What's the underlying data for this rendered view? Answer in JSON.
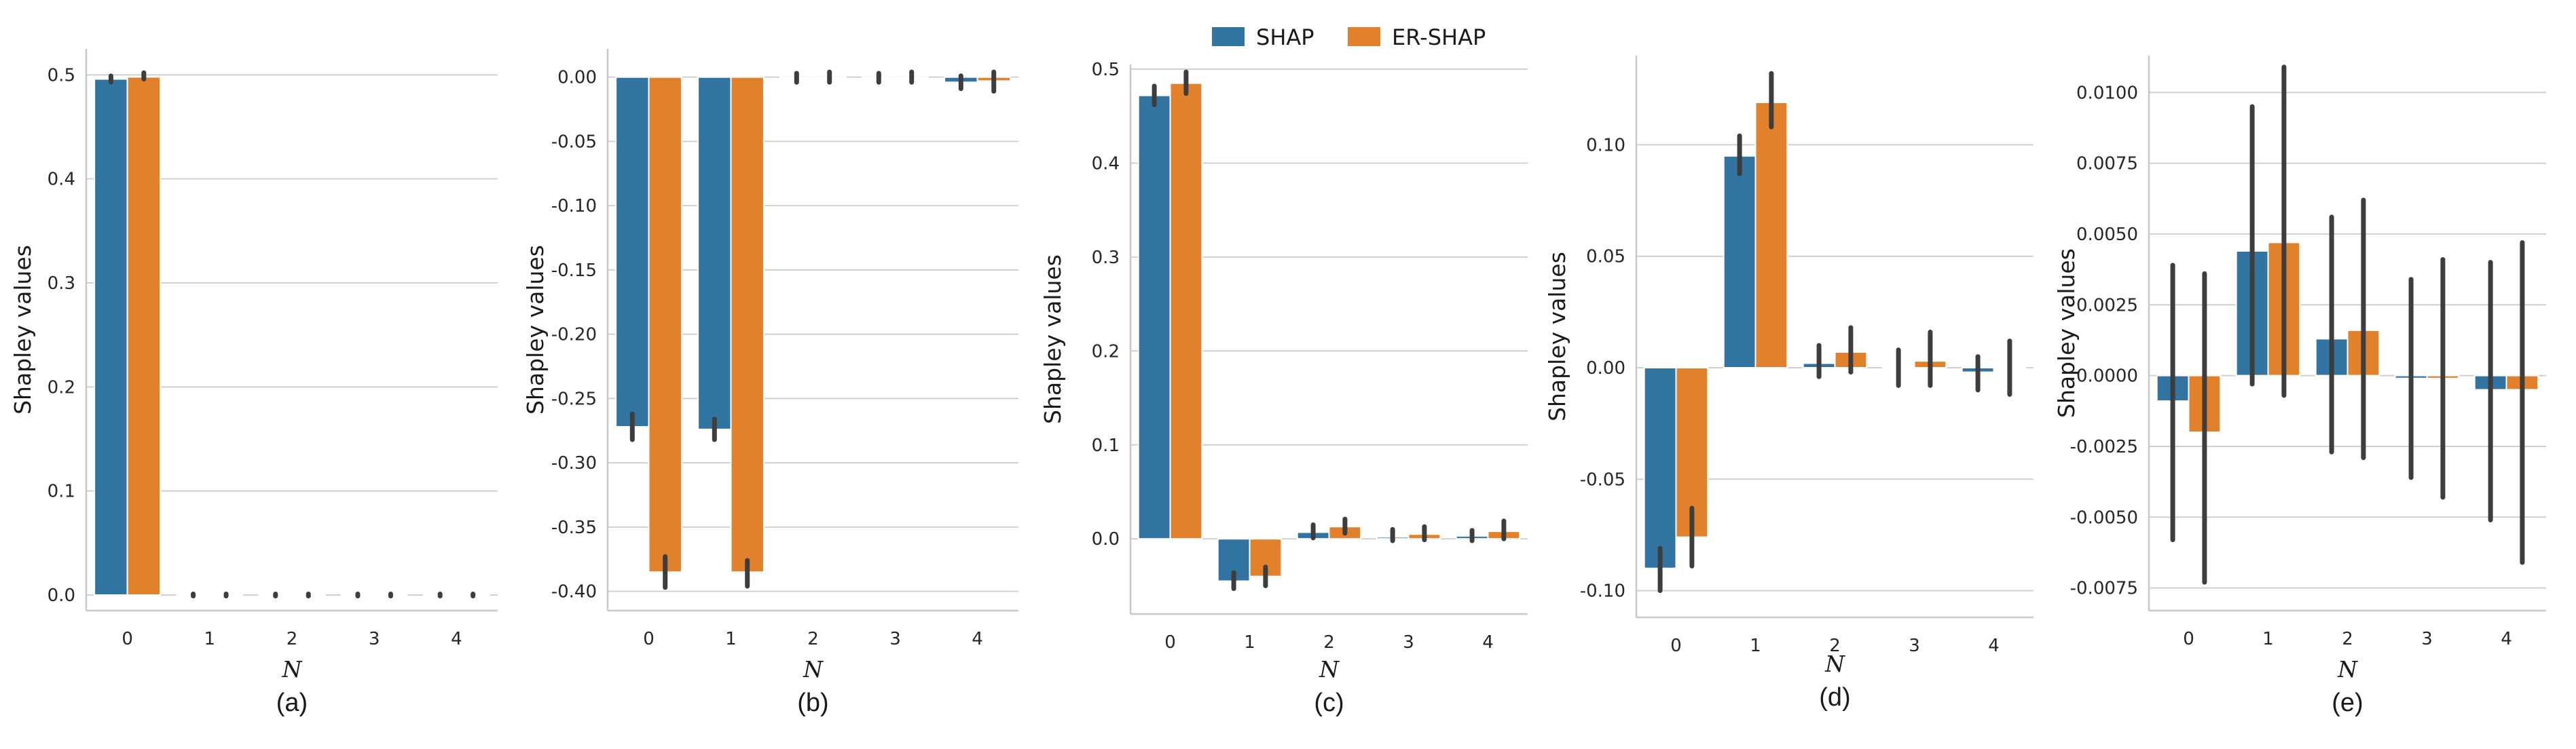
{
  "legend": [
    {
      "label": "SHAP",
      "color": "#3274a1"
    },
    {
      "label": "ER-SHAP",
      "color": "#e1812c"
    }
  ],
  "chart_data": [
    {
      "type": "bar",
      "caption": "(a)",
      "xlabel": "N",
      "ylabel": "Shapley values",
      "categories": [
        "0",
        "1",
        "2",
        "3",
        "4"
      ],
      "ylim": [
        -0.015,
        0.525
      ],
      "yticks": [
        0.0,
        0.1,
        0.2,
        0.3,
        0.4,
        0.5
      ],
      "ytick_labels": [
        "0.0",
        "0.1",
        "0.2",
        "0.3",
        "0.4",
        "0.5"
      ],
      "series": [
        {
          "name": "SHAP",
          "values": [
            0.496,
            0.0,
            0.0,
            0.0,
            0.0
          ],
          "err_low": [
            0.493,
            -0.001,
            -0.001,
            -0.001,
            -0.001
          ],
          "err_high": [
            0.499,
            0.001,
            0.001,
            0.001,
            0.001
          ]
        },
        {
          "name": "ER-SHAP",
          "values": [
            0.498,
            0.0,
            0.0,
            0.0,
            0.0
          ],
          "err_low": [
            0.496,
            -0.001,
            -0.001,
            -0.001,
            -0.001
          ],
          "err_high": [
            0.502,
            0.001,
            0.001,
            0.001,
            0.001
          ]
        }
      ]
    },
    {
      "type": "bar",
      "caption": "(b)",
      "xlabel": "N",
      "ylabel": "Shapley values",
      "categories": [
        "0",
        "1",
        "2",
        "3",
        "4"
      ],
      "ylim": [
        -0.415,
        0.022
      ],
      "yticks": [
        0.0,
        -0.05,
        -0.1,
        -0.15,
        -0.2,
        -0.25,
        -0.3,
        -0.35,
        -0.4
      ],
      "ytick_labels": [
        "0.00",
        "-0.05",
        "-0.10",
        "-0.15",
        "-0.20",
        "-0.25",
        "-0.30",
        "-0.35",
        "-0.40"
      ],
      "series": [
        {
          "name": "SHAP",
          "values": [
            -0.272,
            -0.274,
            0.0,
            0.0,
            -0.004
          ],
          "err_low": [
            -0.282,
            -0.282,
            -0.004,
            -0.004,
            -0.009
          ],
          "err_high": [
            -0.262,
            -0.266,
            0.003,
            0.003,
            0.001
          ]
        },
        {
          "name": "ER-SHAP",
          "values": [
            -0.385,
            -0.385,
            0.0,
            0.0,
            -0.003
          ],
          "err_low": [
            -0.397,
            -0.396,
            -0.004,
            -0.004,
            -0.011
          ],
          "err_high": [
            -0.373,
            -0.376,
            0.004,
            0.004,
            0.004
          ]
        }
      ]
    },
    {
      "type": "bar",
      "caption": "(c)",
      "xlabel": "N",
      "ylabel": "Shapley values",
      "categories": [
        "0",
        "1",
        "2",
        "3",
        "4"
      ],
      "ylim": [
        -0.08,
        0.505
      ],
      "yticks": [
        0.0,
        0.1,
        0.2,
        0.3,
        0.4,
        0.5
      ],
      "ytick_labels": [
        "0.0",
        "0.1",
        "0.2",
        "0.3",
        "0.4",
        "0.5"
      ],
      "series": [
        {
          "name": "SHAP",
          "values": [
            0.472,
            -0.045,
            0.007,
            0.002,
            0.003
          ],
          "err_low": [
            0.462,
            -0.053,
            0.001,
            -0.002,
            -0.002
          ],
          "err_high": [
            0.482,
            -0.036,
            0.015,
            0.01,
            0.009
          ]
        },
        {
          "name": "ER-SHAP",
          "values": [
            0.485,
            -0.04,
            0.013,
            0.005,
            0.008
          ],
          "err_low": [
            0.474,
            -0.05,
            0.006,
            -0.001,
            0.0
          ],
          "err_high": [
            0.497,
            -0.03,
            0.021,
            0.013,
            0.019
          ]
        }
      ]
    },
    {
      "type": "bar",
      "caption": "(d)",
      "xlabel": "N",
      "ylabel": "Shapley values",
      "categories": [
        "0",
        "1",
        "2",
        "3",
        "4"
      ],
      "ylim": [
        -0.112,
        0.14
      ],
      "yticks": [
        -0.1,
        -0.05,
        0.0,
        0.05,
        0.1
      ],
      "ytick_labels": [
        "-0.10",
        "-0.05",
        "0.00",
        "0.05",
        "0.10"
      ],
      "series": [
        {
          "name": "SHAP",
          "values": [
            -0.09,
            0.095,
            0.002,
            0.0,
            -0.002
          ],
          "err_low": [
            -0.1,
            0.087,
            -0.004,
            -0.008,
            -0.01
          ],
          "err_high": [
            -0.081,
            0.104,
            0.01,
            0.008,
            0.005
          ]
        },
        {
          "name": "ER-SHAP",
          "values": [
            -0.076,
            0.119,
            0.007,
            0.003,
            0.0
          ],
          "err_low": [
            -0.089,
            0.108,
            -0.002,
            -0.008,
            -0.012
          ],
          "err_high": [
            -0.063,
            0.132,
            0.018,
            0.016,
            0.012
          ]
        }
      ]
    },
    {
      "type": "bar",
      "caption": "(e)",
      "xlabel": "N",
      "ylabel": "Shapley values",
      "categories": [
        "0",
        "1",
        "2",
        "3",
        "4"
      ],
      "ylim": [
        -0.0083,
        0.0113
      ],
      "yticks": [
        -0.0075,
        -0.005,
        -0.0025,
        0.0,
        0.0025,
        0.005,
        0.0075,
        0.01
      ],
      "ytick_labels": [
        "-0.0075",
        "-0.0050",
        "-0.0025",
        "0.0000",
        "0.0025",
        "0.0050",
        "0.0075",
        "0.0100"
      ],
      "series": [
        {
          "name": "SHAP",
          "values": [
            -0.0009,
            0.0044,
            0.0013,
            -0.0001,
            -0.0005
          ],
          "err_low": [
            -0.0058,
            -0.0003,
            -0.0027,
            -0.0036,
            -0.0051
          ],
          "err_high": [
            0.0039,
            0.0095,
            0.0056,
            0.0034,
            0.004
          ]
        },
        {
          "name": "ER-SHAP",
          "values": [
            -0.002,
            0.0047,
            0.0016,
            -0.0001,
            -0.0005
          ],
          "err_low": [
            -0.0073,
            -0.0007,
            -0.0029,
            -0.0043,
            -0.0066
          ],
          "err_high": [
            0.0036,
            0.0109,
            0.0062,
            0.0041,
            0.0047
          ]
        }
      ]
    }
  ]
}
